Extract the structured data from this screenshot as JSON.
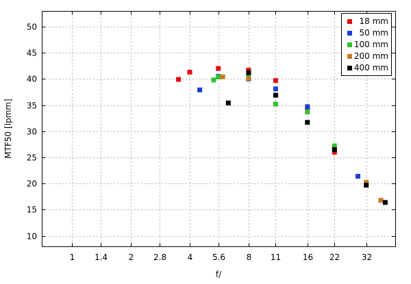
{
  "chart_data": {
    "type": "scatter",
    "xlabel": "f/",
    "ylabel": "MTF50 [lpmm]",
    "x_scale": "log2",
    "xlim": [
      0.7,
      45
    ],
    "ylim": [
      8,
      53
    ],
    "x_ticks": [
      1,
      1.4,
      2,
      2.8,
      4,
      5.6,
      8,
      11,
      16,
      22,
      32
    ],
    "x_tick_labels": [
      "1",
      "1.4",
      "2",
      "2.8",
      "4",
      "5.6",
      "8",
      "11",
      "16",
      "22",
      "32"
    ],
    "y_ticks": [
      10,
      15,
      20,
      25,
      30,
      35,
      40,
      45,
      50
    ],
    "y_tick_labels": [
      "10",
      "15",
      "20",
      "25",
      "30",
      "35",
      "40",
      "45",
      "50"
    ],
    "grid": true,
    "legend_position": "top-right",
    "series": [
      {
        "name": "18 mm",
        "color": "#e51010",
        "points": [
          [
            3.5,
            39.9
          ],
          [
            4,
            41.3
          ],
          [
            5.6,
            42.0
          ],
          [
            8,
            41.7
          ],
          [
            11,
            39.7
          ],
          [
            16,
            34.5
          ],
          [
            22,
            26.0
          ]
        ]
      },
      {
        "name": "50 mm",
        "color": "#1a3fd6",
        "points": [
          [
            4.5,
            37.9
          ],
          [
            5.6,
            40.5
          ],
          [
            8,
            40.0
          ],
          [
            11,
            38.1
          ],
          [
            16,
            34.7
          ],
          [
            29,
            21.4
          ]
        ]
      },
      {
        "name": "100 mm",
        "color": "#2ec22e",
        "points": [
          [
            5.3,
            39.8
          ],
          [
            5.6,
            40.4
          ],
          [
            8,
            40.5
          ],
          [
            11,
            35.2
          ],
          [
            16,
            33.7
          ],
          [
            22,
            27.2
          ],
          [
            32,
            20.2
          ]
        ]
      },
      {
        "name": "200 mm",
        "color": "#c87a28",
        "points": [
          [
            5.9,
            40.4
          ],
          [
            8,
            40.1
          ],
          [
            32,
            20.2
          ],
          [
            38,
            16.8
          ]
        ]
      },
      {
        "name": "400 mm",
        "color": "#000000",
        "points": [
          [
            6.3,
            35.4
          ],
          [
            8,
            41.2
          ],
          [
            11,
            36.9
          ],
          [
            16,
            31.7
          ],
          [
            22,
            26.5
          ],
          [
            32,
            19.7
          ],
          [
            40,
            16.4
          ]
        ]
      }
    ]
  }
}
